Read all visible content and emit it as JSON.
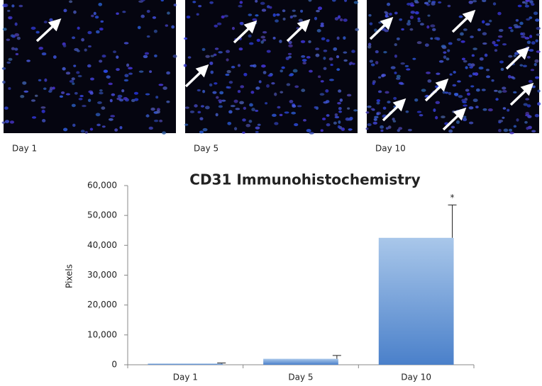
{
  "panels": [
    {
      "label": "Day 1"
    },
    {
      "label": "Day 5"
    },
    {
      "label": "Day 10"
    }
  ],
  "chart_data": {
    "type": "bar",
    "title": "CD31 Immunohistochemistry",
    "y_label": "Pixels",
    "categories": [
      "Day 1",
      "Day 5",
      "Day 10"
    ],
    "values": [
      400,
      2000,
      42500
    ],
    "errors": [
      200,
      1100,
      11000
    ],
    "color": "#4a80ca",
    "ylim": [
      0,
      60000
    ],
    "yticks": [
      0,
      {
        "value": 10000,
        "label": "10,000"
      },
      {
        "value": 20000,
        "label": "20,000"
      },
      {
        "value": 30000,
        "label": "30,000"
      },
      {
        "value": 40000,
        "label": "40,000"
      },
      {
        "value": 50000,
        "label": "50,000"
      },
      {
        "value": 60000,
        "label": "60,000"
      }
    ],
    "grid": false,
    "annotations": [
      {
        "text": "*",
        "category": "Day 10"
      }
    ]
  }
}
